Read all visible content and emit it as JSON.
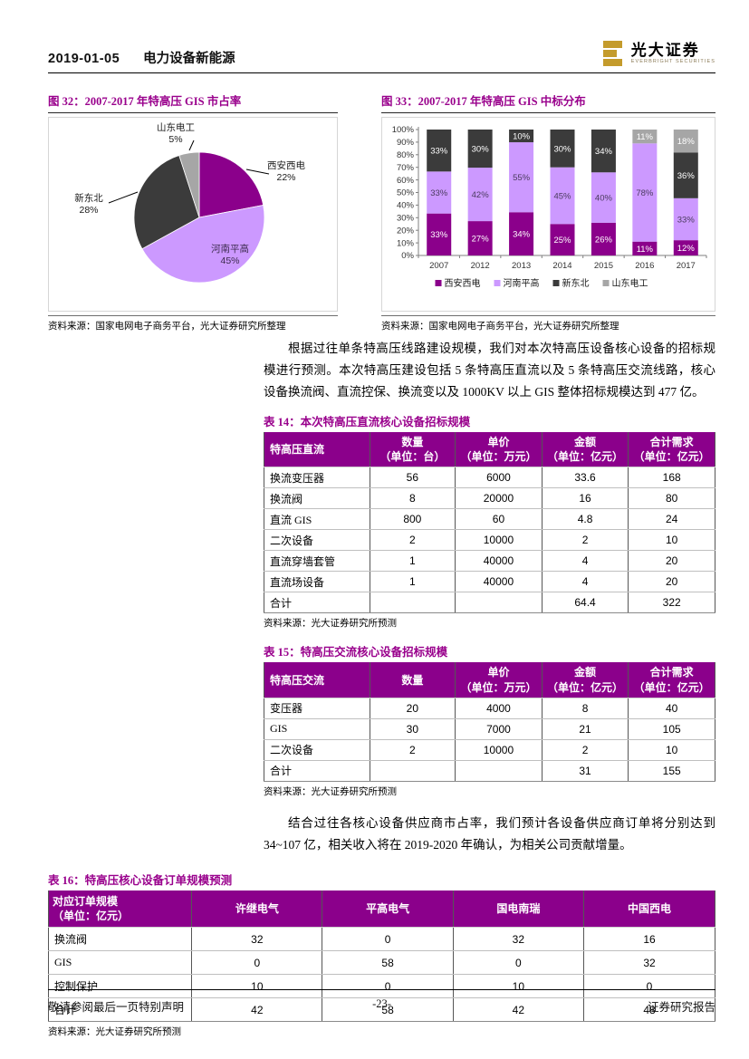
{
  "header": {
    "date": "2019-01-05",
    "section": "电力设备新能源",
    "logo_cn": "光大证券",
    "logo_en": "EVERBRIGHT SECURITIES",
    "logo_color": "#C49B2C"
  },
  "figures": [
    {
      "title": "图 32：2007-2017 年特高压 GIS 市占率",
      "source": "资料来源：国家电网电子商务平台，光大证券研究所整理"
    },
    {
      "title": "图 33：2007-2017 年特高压 GIS 中标分布",
      "source": "资料来源：国家电网电子商务平台，光大证券研究所整理"
    }
  ],
  "chart_data": [
    {
      "type": "pie",
      "title": "2007-2017 年特高压 GIS 市占率",
      "labels": [
        "西安西电",
        "河南平高",
        "新东北",
        "山东电工"
      ],
      "values": [
        22,
        45,
        28,
        5
      ],
      "colors": [
        "#8B008B",
        "#CC99FF",
        "#3B3B3B",
        "#A6A6A6"
      ],
      "start_angle_deg": 0,
      "direction": "clockwise"
    },
    {
      "type": "bar",
      "stacked": true,
      "title": "2007-2017 年特高压 GIS 中标分布",
      "categories": [
        "2007",
        "2012",
        "2013",
        "2014",
        "2015",
        "2016",
        "2017"
      ],
      "series": [
        {
          "name": "西安西电",
          "color": "#8B008B",
          "values": [
            33,
            27,
            34,
            25,
            26,
            11,
            12
          ]
        },
        {
          "name": "河南平高",
          "color": "#CC99FF",
          "values": [
            33,
            42,
            55,
            45,
            40,
            78,
            33
          ]
        },
        {
          "name": "新东北",
          "color": "#3B3B3B",
          "values": [
            33,
            30,
            10,
            30,
            34,
            0,
            36
          ]
        },
        {
          "name": "山东电工",
          "color": "#A6A6A6",
          "values": [
            0,
            0,
            0,
            0,
            0,
            11,
            18
          ]
        }
      ],
      "ylim": [
        0,
        100
      ],
      "yticks": [
        "0%",
        "10%",
        "20%",
        "30%",
        "40%",
        "50%",
        "60%",
        "70%",
        "80%",
        "90%",
        "100%"
      ],
      "grid": false,
      "legend_position": "bottom"
    }
  ],
  "paragraphs": {
    "p1": "根据过往单条特高压线路建设规模，我们对本次特高压设备核心设备的招标规模进行预测。本次特高压建设包括 5 条特高压直流以及 5 条特高压交流线路，核心设备换流阀、直流控保、换流变以及 1000KV 以上 GIS 整体招标规模达到 477 亿。",
    "p2": "结合过往各核心设备供应商市占率，我们预计各设备供应商订单将分别达到 34~107 亿，相关收入将在 2019-2020 年确认，为相关公司贡献增量。"
  },
  "tables": [
    {
      "title": "表 14：本次特高压直流核心设备招标规模",
      "headers": [
        "特高压直流",
        "数量\n（单位：台）",
        "单价\n（单位：万元）",
        "金额\n（单位：亿元）",
        "合计需求\n（单位：亿元）"
      ],
      "rows": [
        [
          "换流变压器",
          "56",
          "6000",
          "33.6",
          "168"
        ],
        [
          "换流阀",
          "8",
          "20000",
          "16",
          "80"
        ],
        [
          "直流 GIS",
          "800",
          "60",
          "4.8",
          "24"
        ],
        [
          "二次设备",
          "2",
          "10000",
          "2",
          "10"
        ],
        [
          "直流穿墙套管",
          "1",
          "40000",
          "4",
          "20"
        ],
        [
          "直流场设备",
          "1",
          "40000",
          "4",
          "20"
        ],
        [
          "合计",
          "",
          "",
          "64.4",
          "322"
        ]
      ],
      "source": "资料来源：光大证券研究所预测"
    },
    {
      "title": "表 15：特高压交流核心设备招标规模",
      "headers": [
        "特高压交流",
        "数量",
        "单价\n（单位：万元）",
        "金额\n（单位：亿元）",
        "合计需求\n（单位：亿元）"
      ],
      "rows": [
        [
          "变压器",
          "20",
          "4000",
          "8",
          "40"
        ],
        [
          "GIS",
          "30",
          "7000",
          "21",
          "105"
        ],
        [
          "二次设备",
          "2",
          "10000",
          "2",
          "10"
        ],
        [
          "合计",
          "",
          "",
          "31",
          "155"
        ]
      ],
      "source": "资料来源：光大证券研究所预测"
    },
    {
      "title": "表 16：特高压核心设备订单规模预测",
      "headers": [
        "对应订单规模\n（单位：亿元）",
        "许继电气",
        "平高电气",
        "国电南瑞",
        "中国西电"
      ],
      "rows": [
        [
          "换流阀",
          "32",
          "0",
          "32",
          "16"
        ],
        [
          "GIS",
          "0",
          "58",
          "0",
          "32"
        ],
        [
          "控制保护",
          "10",
          "0",
          "10",
          "0"
        ],
        [
          "合计",
          "42",
          "58",
          "42",
          "48"
        ]
      ],
      "source": "资料来源：光大证券研究所预测"
    }
  ],
  "footer": {
    "left": "敬请参阅最后一页特别声明",
    "center": "-23-",
    "right": "证券研究报告"
  },
  "colors": {
    "accent_purple": "#8B008B",
    "title_purple": "#99008C",
    "light_purple": "#CC99FF",
    "charcoal": "#3B3B3B",
    "gray": "#A6A6A6",
    "gold": "#C49B2C"
  }
}
